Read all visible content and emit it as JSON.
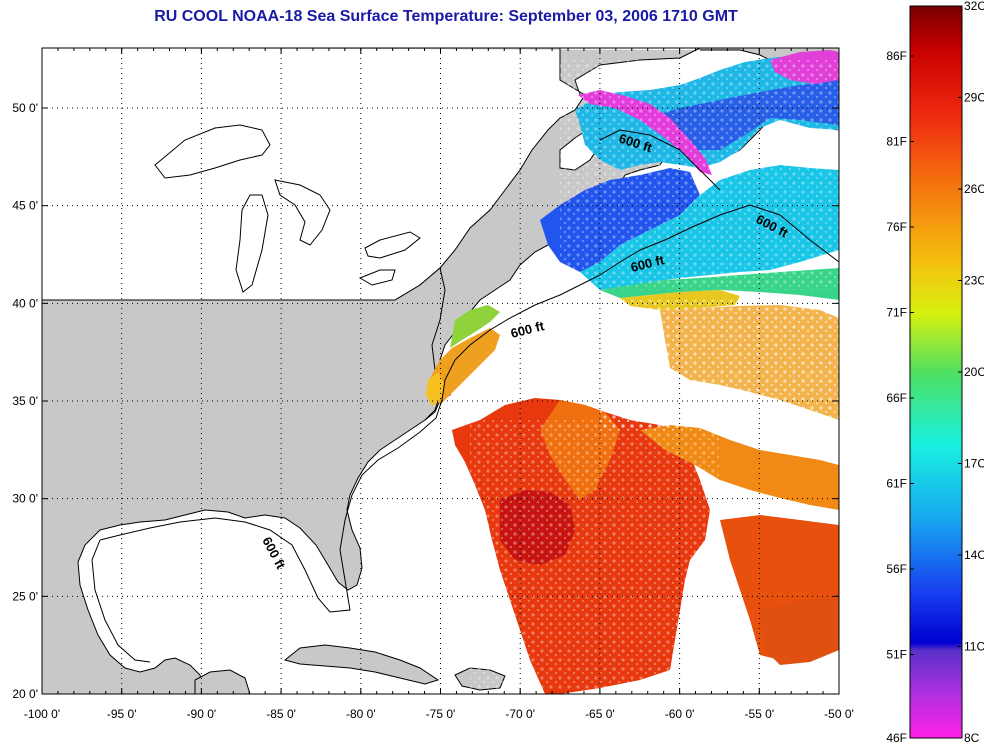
{
  "title": "RU COOL  NOAA-18  Sea Surface Temperature:  September 03, 2006 1710 GMT",
  "lon_ticks": [
    "-100 0'",
    "-95 0'",
    "-90 0'",
    "-85 0'",
    "-80 0'",
    "-75 0'",
    "-70 0'",
    "-65 0'",
    "-60 0'",
    "-55 0'",
    "-50 0'"
  ],
  "lat_ticks": [
    "50 0'",
    "45 0'",
    "40 0'",
    "35 0'",
    "30 0'",
    "25 0'",
    "20 0'"
  ],
  "isobath_labels": [
    "600 ft",
    "600 ft",
    "600 ft",
    "600 ft",
    "600 ft"
  ],
  "colorbar": {
    "celsius": [
      "32C",
      "29C",
      "26C",
      "23C",
      "20C",
      "17C",
      "14C",
      "11C",
      "8C"
    ],
    "fahrenheit": [
      "86F",
      "81F",
      "76F",
      "71F",
      "66F",
      "61F",
      "56F",
      "51F",
      "46F"
    ]
  },
  "colors": {
    "land": "#c8c8c8",
    "title": "#1a1aa6",
    "no_data": "#ffffff"
  }
}
